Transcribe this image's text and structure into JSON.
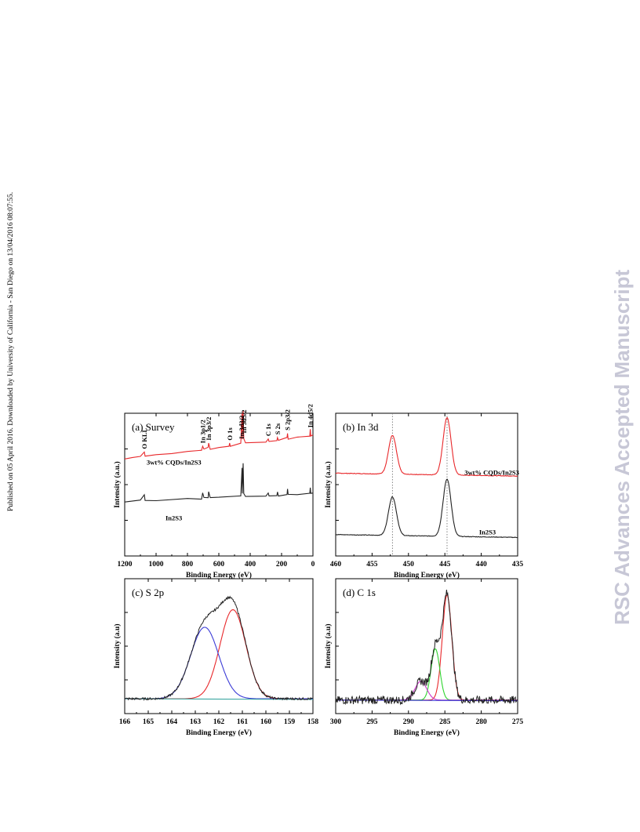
{
  "side_note": "Published on 05 April 2016. Downloaded by University of California - San Diego on 13/04/2016 08:07:55.",
  "watermark": "RSC Advances Accepted Manuscript",
  "colors": {
    "red": "#e8282b",
    "black": "#222222",
    "blue": "#3b3bd6",
    "green": "#2fd42f",
    "magenta": "#cc33cc",
    "teal": "#3aa6a0",
    "grey": "#8a8a8a"
  },
  "chart_data": [
    {
      "type": "line",
      "panel": "(a) Survey",
      "xlabel": "Binding Energy (eV)",
      "ylabel": "Intensity (a.u.)",
      "xlim": [
        1200,
        0
      ],
      "xticks": [
        "1200",
        "1000",
        "800",
        "600",
        "400",
        "200",
        "0"
      ],
      "series": [
        {
          "name": "3wt% CQDs/In2S3",
          "color": "#e8282b",
          "points": [
            [
              1200,
              0.68
            ],
            [
              1150,
              0.69
            ],
            [
              1100,
              0.7
            ],
            [
              1075,
              0.73
            ],
            [
              1070,
              0.7
            ],
            [
              1000,
              0.71
            ],
            [
              900,
              0.72
            ],
            [
              800,
              0.73
            ],
            [
              710,
              0.74
            ],
            [
              703,
              0.77
            ],
            [
              695,
              0.75
            ],
            [
              668,
              0.76
            ],
            [
              665,
              0.79
            ],
            [
              655,
              0.75
            ],
            [
              600,
              0.76
            ],
            [
              535,
              0.77
            ],
            [
              531,
              0.79
            ],
            [
              527,
              0.77
            ],
            [
              460,
              0.79
            ],
            [
              452,
              1.0
            ],
            [
              450,
              0.82
            ],
            [
              445,
              1.02
            ],
            [
              441,
              0.82
            ],
            [
              430,
              0.79
            ],
            [
              300,
              0.8
            ],
            [
              285,
              0.82
            ],
            [
              280,
              0.8
            ],
            [
              230,
              0.81
            ],
            [
              226,
              0.83
            ],
            [
              220,
              0.81
            ],
            [
              165,
              0.83
            ],
            [
              162,
              0.86
            ],
            [
              158,
              0.82
            ],
            [
              100,
              0.83
            ],
            [
              20,
              0.84
            ],
            [
              17,
              0.89
            ],
            [
              14,
              0.84
            ],
            [
              0,
              0.85
            ]
          ]
        },
        {
          "name": "In2S3",
          "color": "#222222",
          "points": [
            [
              1200,
              0.38
            ],
            [
              1100,
              0.39
            ],
            [
              1075,
              0.43
            ],
            [
              1070,
              0.39
            ],
            [
              1000,
              0.39
            ],
            [
              800,
              0.4
            ],
            [
              710,
              0.4
            ],
            [
              703,
              0.44
            ],
            [
              695,
              0.41
            ],
            [
              668,
              0.41
            ],
            [
              665,
              0.45
            ],
            [
              655,
              0.41
            ],
            [
              600,
              0.41
            ],
            [
              460,
              0.42
            ],
            [
              452,
              0.62
            ],
            [
              450,
              0.44
            ],
            [
              445,
              0.65
            ],
            [
              441,
              0.44
            ],
            [
              430,
              0.42
            ],
            [
              300,
              0.42
            ],
            [
              285,
              0.44
            ],
            [
              280,
              0.42
            ],
            [
              230,
              0.42
            ],
            [
              226,
              0.45
            ],
            [
              220,
              0.42
            ],
            [
              165,
              0.43
            ],
            [
              162,
              0.47
            ],
            [
              158,
              0.43
            ],
            [
              100,
              0.43
            ],
            [
              20,
              0.44
            ],
            [
              17,
              0.48
            ],
            [
              14,
              0.44
            ],
            [
              0,
              0.44
            ]
          ]
        }
      ],
      "annotations": [
        "O KLL",
        "In 3p1/2",
        "In 3p3/2",
        "O 1s",
        "In 3d3/2",
        "In 3d5/2",
        "C 1s",
        "S 2s",
        "S 2p3/2",
        "In 4d5/2"
      ],
      "legend": [
        "3wt% CQDs/In2S3",
        "In2S3"
      ]
    },
    {
      "type": "line",
      "panel": "(b) In 3d",
      "xlabel": "Binding Energy (eV)",
      "ylabel": "Intensity (a.u.)",
      "xlim": [
        460,
        435
      ],
      "xticks": [
        "460",
        "455",
        "450",
        "445",
        "440",
        "435"
      ],
      "reference_lines": [
        452.2,
        444.7
      ],
      "series": [
        {
          "name": "3wt% CQDs/In2S3",
          "color": "#e8282b",
          "peaks": [
            {
              "center": 452.2,
              "height": 0.27,
              "width": 0.55
            },
            {
              "center": 444.7,
              "height": 0.4,
              "width": 0.55
            }
          ],
          "baseline_start": 0.58,
          "baseline_end": 0.56
        },
        {
          "name": "In2S3",
          "color": "#222222",
          "peaks": [
            {
              "center": 452.2,
              "height": 0.27,
              "width": 0.55
            },
            {
              "center": 444.7,
              "height": 0.4,
              "width": 0.55
            }
          ],
          "baseline_start": 0.15,
          "baseline_end": 0.13
        }
      ],
      "legend": [
        "3wt% CQDs/In2S3",
        "In2S3"
      ]
    },
    {
      "type": "line",
      "panel": "(c) S 2p",
      "xlabel": "Binding Energy (eV)",
      "ylabel": "Intensity (a.u)",
      "xlim": [
        166,
        158
      ],
      "xticks": [
        "166",
        "165",
        "164",
        "163",
        "162",
        "161",
        "160",
        "159",
        "158"
      ],
      "series": [
        {
          "name": "",
          "color": "#e8282b",
          "peaks": [
            {
              "center": 161.4,
              "height": 0.66,
              "width": 0.55
            }
          ]
        },
        {
          "name": "",
          "color": "#3b3bd6",
          "peaks": [
            {
              "center": 162.6,
              "height": 0.53,
              "width": 0.6
            }
          ]
        },
        {
          "name": "",
          "color": "#3aa6a0",
          "peaks": []
        },
        {
          "name": "",
          "color": "#222222",
          "sum": true,
          "noise": 0.008
        }
      ],
      "baseline": 0.11
    },
    {
      "type": "line",
      "panel": "(d) C 1s",
      "xlabel": "Binding Energy (eV)",
      "ylabel": "Intensity (a.u)",
      "xlim": [
        300,
        275
      ],
      "xticks": [
        "300",
        "295",
        "290",
        "285",
        "280",
        "275"
      ],
      "series": [
        {
          "name": "",
          "color": "#e8282b",
          "peaks": [
            {
              "center": 284.7,
              "height": 0.78,
              "width": 0.65
            }
          ]
        },
        {
          "name": "",
          "color": "#2fd42f",
          "peaks": [
            {
              "center": 286.3,
              "height": 0.38,
              "width": 0.6
            }
          ]
        },
        {
          "name": "",
          "color": "#cc33cc",
          "peaks": [
            {
              "center": 288.3,
              "height": 0.14,
              "width": 0.8
            }
          ]
        },
        {
          "name": "",
          "color": "#3b3bd6",
          "peaks": []
        },
        {
          "name": "",
          "color": "#222222",
          "sum": true,
          "noise": 0.03
        }
      ],
      "baseline": 0.1
    }
  ]
}
